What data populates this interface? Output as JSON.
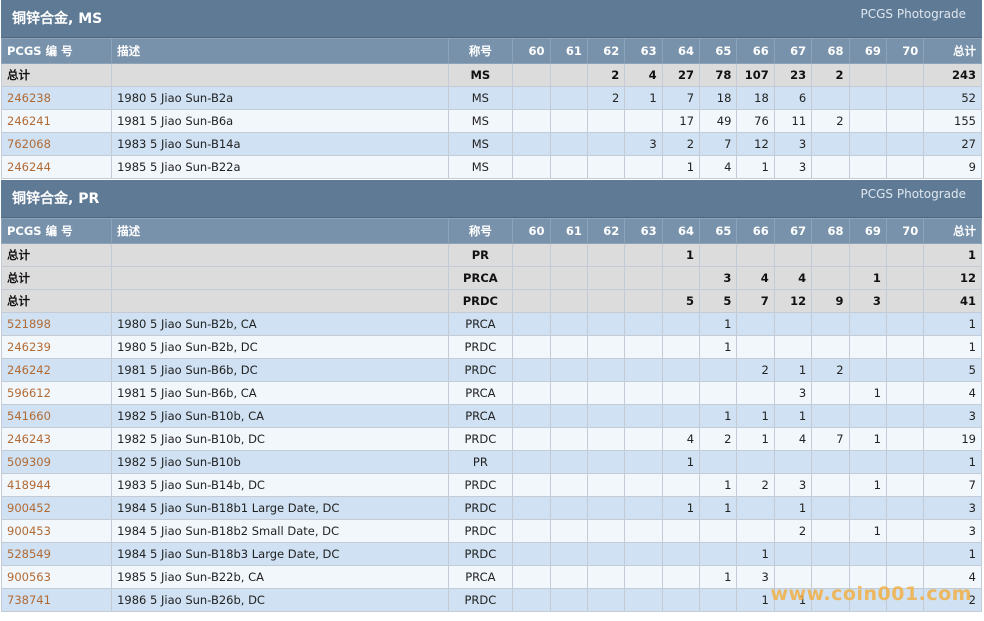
{
  "sections": [
    {
      "title": "铜锌合金, MS",
      "right_label": "PCGS Photograde",
      "columns": [
        "PCGS 编 号",
        "描述",
        "称号",
        "60",
        "61",
        "62",
        "63",
        "64",
        "65",
        "66",
        "67",
        "68",
        "69",
        "70",
        "总计"
      ],
      "rows": [
        {
          "type": "total",
          "id": "总计",
          "desc": "",
          "desig": "MS",
          "cells": [
            "",
            "",
            "2",
            "4",
            "27",
            "78",
            "107",
            "23",
            "2",
            "",
            ""
          ],
          "total": "243"
        },
        {
          "type": "data",
          "id": "246238",
          "desc": "1980 5 Jiao Sun-B2a",
          "desig": "MS",
          "cells": [
            "",
            "",
            "2",
            "1",
            "7",
            "18",
            "18",
            "6",
            "",
            "",
            ""
          ],
          "total": "52"
        },
        {
          "type": "data",
          "id": "246241",
          "desc": "1981 5 Jiao Sun-B6a",
          "desig": "MS",
          "cells": [
            "",
            "",
            "",
            "",
            "17",
            "49",
            "76",
            "11",
            "2",
            "",
            ""
          ],
          "total": "155"
        },
        {
          "type": "data",
          "id": "762068",
          "desc": "1983 5 Jiao Sun-B14a",
          "desig": "MS",
          "cells": [
            "",
            "",
            "",
            "3",
            "2",
            "7",
            "12",
            "3",
            "",
            "",
            ""
          ],
          "total": "27"
        },
        {
          "type": "data",
          "id": "246244",
          "desc": "1985 5 Jiao Sun-B22a",
          "desig": "MS",
          "cells": [
            "",
            "",
            "",
            "",
            "1",
            "4",
            "1",
            "3",
            "",
            "",
            ""
          ],
          "total": "9"
        }
      ]
    },
    {
      "title": "铜锌合金, PR",
      "right_label": "PCGS Photograde",
      "columns": [
        "PCGS 编 号",
        "描述",
        "称号",
        "60",
        "61",
        "62",
        "63",
        "64",
        "65",
        "66",
        "67",
        "68",
        "69",
        "70",
        "总计"
      ],
      "rows": [
        {
          "type": "total",
          "id": "总计",
          "desc": "",
          "desig": "PR",
          "cells": [
            "",
            "",
            "",
            "",
            "1",
            "",
            "",
            "",
            "",
            "",
            ""
          ],
          "total": "1"
        },
        {
          "type": "total",
          "id": "总计",
          "desc": "",
          "desig": "PRCA",
          "cells": [
            "",
            "",
            "",
            "",
            "",
            "3",
            "4",
            "4",
            "",
            "1",
            ""
          ],
          "total": "12"
        },
        {
          "type": "total",
          "id": "总计",
          "desc": "",
          "desig": "PRDC",
          "cells": [
            "",
            "",
            "",
            "",
            "5",
            "5",
            "7",
            "12",
            "9",
            "3",
            ""
          ],
          "total": "41"
        },
        {
          "type": "data",
          "id": "521898",
          "desc": "1980 5 Jiao Sun-B2b, CA",
          "desig": "PRCA",
          "cells": [
            "",
            "",
            "",
            "",
            "",
            "1",
            "",
            "",
            "",
            "",
            ""
          ],
          "total": "1"
        },
        {
          "type": "data",
          "id": "246239",
          "desc": "1980 5 Jiao Sun-B2b, DC",
          "desig": "PRDC",
          "cells": [
            "",
            "",
            "",
            "",
            "",
            "1",
            "",
            "",
            "",
            "",
            ""
          ],
          "total": "1"
        },
        {
          "type": "data",
          "id": "246242",
          "desc": "1981 5 Jiao Sun-B6b, DC",
          "desig": "PRDC",
          "cells": [
            "",
            "",
            "",
            "",
            "",
            "",
            "2",
            "1",
            "2",
            "",
            ""
          ],
          "total": "5"
        },
        {
          "type": "data",
          "id": "596612",
          "desc": "1981 5 Jiao Sun-B6b, CA",
          "desig": "PRCA",
          "cells": [
            "",
            "",
            "",
            "",
            "",
            "",
            "",
            "3",
            "",
            "1",
            ""
          ],
          "total": "4"
        },
        {
          "type": "data",
          "id": "541660",
          "desc": "1982 5 Jiao Sun-B10b, CA",
          "desig": "PRCA",
          "cells": [
            "",
            "",
            "",
            "",
            "",
            "1",
            "1",
            "1",
            "",
            "",
            ""
          ],
          "total": "3"
        },
        {
          "type": "data",
          "id": "246243",
          "desc": "1982 5 Jiao Sun-B10b, DC",
          "desig": "PRDC",
          "cells": [
            "",
            "",
            "",
            "",
            "4",
            "2",
            "1",
            "4",
            "7",
            "1",
            ""
          ],
          "total": "19"
        },
        {
          "type": "data",
          "id": "509309",
          "desc": "1982 5 Jiao Sun-B10b",
          "desig": "PR",
          "cells": [
            "",
            "",
            "",
            "",
            "1",
            "",
            "",
            "",
            "",
            "",
            ""
          ],
          "total": "1"
        },
        {
          "type": "data",
          "id": "418944",
          "desc": "1983 5 Jiao Sun-B14b, DC",
          "desig": "PRDC",
          "cells": [
            "",
            "",
            "",
            "",
            "",
            "1",
            "2",
            "3",
            "",
            "1",
            ""
          ],
          "total": "7"
        },
        {
          "type": "data",
          "id": "900452",
          "desc": "1984 5 Jiao Sun-B18b1 Large Date, DC",
          "desig": "PRDC",
          "cells": [
            "",
            "",
            "",
            "",
            "1",
            "1",
            "",
            "1",
            "",
            "",
            ""
          ],
          "total": "3"
        },
        {
          "type": "data",
          "id": "900453",
          "desc": "1984 5 Jiao Sun-B18b2 Small Date, DC",
          "desig": "PRDC",
          "cells": [
            "",
            "",
            "",
            "",
            "",
            "",
            "",
            "2",
            "",
            "1",
            ""
          ],
          "total": "3"
        },
        {
          "type": "data",
          "id": "528549",
          "desc": "1984 5 Jiao Sun-B18b3 Large Date, DC",
          "desig": "PRDC",
          "cells": [
            "",
            "",
            "",
            "",
            "",
            "",
            "1",
            "",
            "",
            "",
            ""
          ],
          "total": "1"
        },
        {
          "type": "data",
          "id": "900563",
          "desc": "1985 5 Jiao Sun-B22b, CA",
          "desig": "PRCA",
          "cells": [
            "",
            "",
            "",
            "",
            "",
            "1",
            "3",
            "",
            "",
            "",
            ""
          ],
          "total": "4"
        },
        {
          "type": "data",
          "id": "738741",
          "desc": "1986 5 Jiao Sun-B26b, DC",
          "desig": "PRDC",
          "cells": [
            "",
            "",
            "",
            "",
            "",
            "",
            "1",
            "1",
            "",
            "",
            ""
          ],
          "total": "2"
        }
      ]
    }
  ],
  "watermark": "www.coin001.com",
  "colors": {
    "header_bar": "#5f7a95",
    "column_header": "#7892ab",
    "total_row": "#dcdcdc",
    "row_blue": "#cfe1f2",
    "row_light": "#f2f7fc",
    "cert_link": "#b26a34",
    "watermark": "#f2b045"
  }
}
